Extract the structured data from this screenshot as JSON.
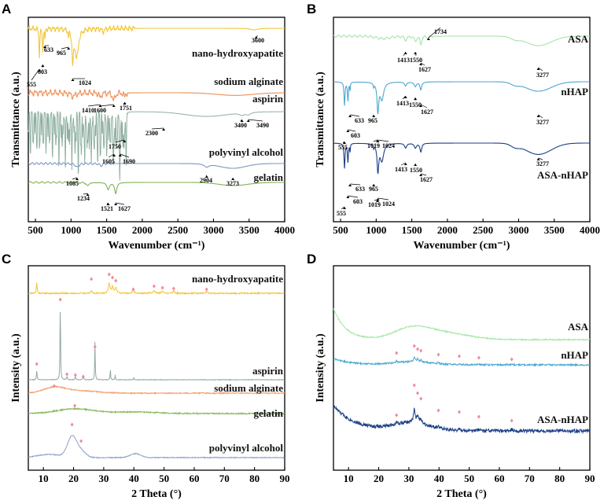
{
  "chart_data": [
    {
      "panel": "A",
      "type": "line",
      "title": "",
      "xlabel": "Wavenumber (cm⁻¹)",
      "ylabel": "Transmittance (a.u.)",
      "xlim": [
        400,
        4000
      ],
      "xticks": [
        500,
        1000,
        1500,
        2000,
        2500,
        3000,
        3500,
        4000
      ],
      "series": [
        {
          "name": "nano-hydroxyapatite",
          "color": "#f2c63c",
          "peaks": [
            "555",
            "603",
            "633",
            "965",
            "1024",
            "3600"
          ]
        },
        {
          "name": "sodium alginate",
          "color": "#ee8f56",
          "peaks": [
            "1410",
            "1600",
            "1751"
          ]
        },
        {
          "name": "aspirin",
          "color": "#8fb0a0",
          "peaks": [
            "1605",
            "1690",
            "1750",
            "2300",
            "3400",
            "3490"
          ]
        },
        {
          "name": "polyvinyl alcohol",
          "color": "#7e96c2",
          "peaks": [
            "1085",
            "2904",
            "3273"
          ]
        },
        {
          "name": "gelatin",
          "color": "#7fb356",
          "peaks": [
            "1234",
            "1521",
            "1627"
          ]
        }
      ]
    },
    {
      "panel": "B",
      "type": "line",
      "title": "",
      "xlabel": "Wavenumber (cm⁻¹)",
      "ylabel": "Transmittance (a.u.)",
      "xlim": [
        400,
        4000
      ],
      "xticks": [
        500,
        1000,
        1500,
        2000,
        2500,
        3000,
        3500,
        4000
      ],
      "series": [
        {
          "name": "ASA",
          "color": "#a6e3a9",
          "peaks": [
            "1413",
            "1550",
            "1627",
            "1734",
            "3277"
          ]
        },
        {
          "name": "nHAP",
          "color": "#4fa6cf",
          "peaks": [
            "555",
            "603",
            "633",
            "965",
            "1019",
            "1024",
            "1413",
            "1550",
            "1627",
            "3277"
          ]
        },
        {
          "name": "ASA-nHAP",
          "color": "#1c3f86",
          "peaks": [
            "555",
            "603",
            "633",
            "965",
            "1019",
            "1024",
            "1413",
            "1550",
            "1627",
            "3277"
          ]
        }
      ]
    },
    {
      "panel": "C",
      "type": "line",
      "title": "",
      "xlabel": "2 Theta (°)",
      "ylabel": "Intensity (a.u.)",
      "xlim": [
        5,
        90
      ],
      "xticks": [
        10,
        20,
        30,
        40,
        50,
        60,
        70,
        80,
        90
      ],
      "series": [
        {
          "name": "nano-hydroxyapatite",
          "color": "#f2c63c",
          "marked_peaks_2theta": [
            25.9,
            31.8,
            32.9,
            34.0,
            39.8,
            46.7,
            49.5,
            53.2,
            64.1
          ]
        },
        {
          "name": "aspirin",
          "color": "#8fa9a2",
          "marked_peaks_2theta": [
            7.8,
            15.6,
            17.8,
            20.6,
            23.2,
            27.1
          ]
        },
        {
          "name": "sodium alginate",
          "color": "#f0a071",
          "marked_peaks_2theta": [
            13.6
          ]
        },
        {
          "name": "gelatin",
          "color": "#86b85c",
          "marked_peaks_2theta": [
            20.4
          ]
        },
        {
          "name": "polyvinyl alcohol",
          "color": "#8aa0c8",
          "marked_peaks_2theta": [
            19.5,
            22.5
          ]
        }
      ]
    },
    {
      "panel": "D",
      "type": "line",
      "title": "",
      "xlabel": "2 Theta (°)",
      "ylabel": "Intensity (a.u.)",
      "xlim": [
        5,
        90
      ],
      "xticks": [
        10,
        20,
        30,
        40,
        50,
        60,
        70,
        80,
        90
      ],
      "series": [
        {
          "name": "ASA",
          "color": "#a9e6a9",
          "marked_peaks_2theta": []
        },
        {
          "name": "nHAP",
          "color": "#4aa8cf",
          "marked_peaks_2theta": [
            25.9,
            31.8,
            32.9,
            34.0,
            39.8,
            46.7,
            53.2,
            64.1
          ]
        },
        {
          "name": "ASA-nHAP",
          "color": "#1b3f86",
          "marked_peaks_2theta": [
            25.9,
            31.8,
            32.9,
            34.0,
            39.8,
            46.7,
            53.2,
            64.1
          ]
        }
      ]
    }
  ],
  "marker_color": "#ef8a9a",
  "panel_labels": [
    "A",
    "B",
    "C",
    "D"
  ]
}
